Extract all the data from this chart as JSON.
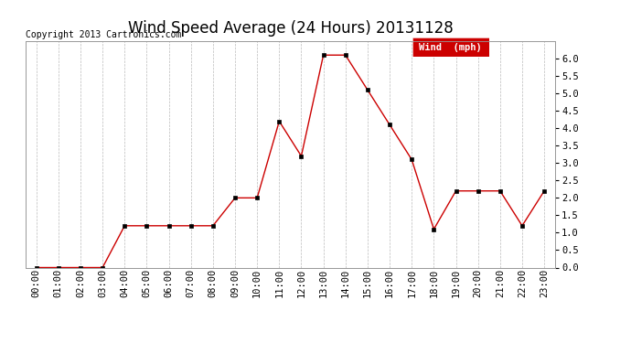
{
  "title": "Wind Speed Average (24 Hours) 20131128",
  "copyright": "Copyright 2013 Cartronics.com",
  "legend_label": "Wind  (mph)",
  "legend_bg": "#cc0000",
  "legend_text_color": "#ffffff",
  "x_labels": [
    "00:00",
    "01:00",
    "02:00",
    "03:00",
    "04:00",
    "05:00",
    "06:00",
    "07:00",
    "08:00",
    "09:00",
    "10:00",
    "11:00",
    "12:00",
    "13:00",
    "14:00",
    "15:00",
    "16:00",
    "17:00",
    "18:00",
    "19:00",
    "20:00",
    "21:00",
    "22:00",
    "23:00"
  ],
  "y_values": [
    0.0,
    0.0,
    0.0,
    0.0,
    1.2,
    1.2,
    1.2,
    1.2,
    1.2,
    2.0,
    2.0,
    4.2,
    3.2,
    6.1,
    6.1,
    5.1,
    4.1,
    3.1,
    1.1,
    2.2,
    2.2,
    2.2,
    1.2,
    2.2
  ],
  "line_color": "#cc0000",
  "marker_color": "#000000",
  "grid_color": "#aaaaaa",
  "bg_color": "#ffffff",
  "ylim": [
    0.0,
    6.5
  ],
  "ytick_min": 0.0,
  "ytick_max": 6.0,
  "ytick_step": 0.5,
  "title_fontsize": 12,
  "tick_fontsize": 7.5,
  "copyright_fontsize": 7.0,
  "legend_fontsize": 7.5
}
